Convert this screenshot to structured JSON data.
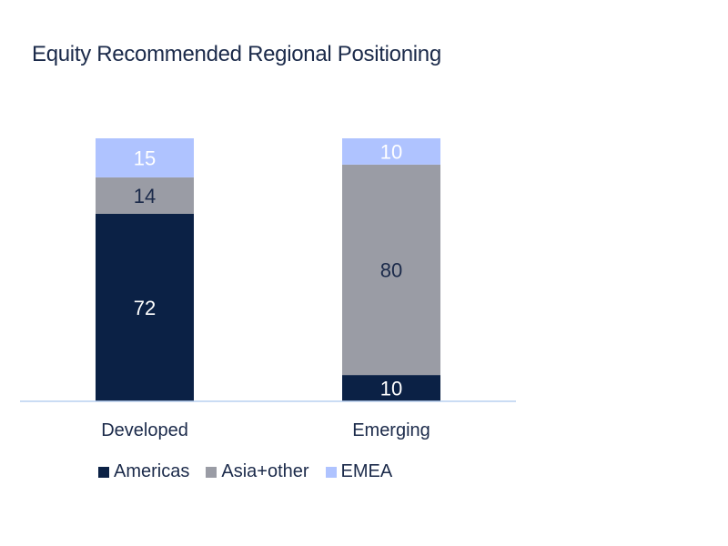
{
  "chart_data": {
    "type": "bar",
    "stacked": true,
    "title": "Equity Recommended Regional Positioning",
    "categories": [
      "Developed",
      "Emerging"
    ],
    "series": [
      {
        "name": "Americas",
        "values": [
          72,
          10
        ],
        "color": "#0b2145",
        "label_color": "#ffffff"
      },
      {
        "name": "Asia+other",
        "values": [
          14,
          80
        ],
        "color": "#9a9ca5",
        "label_color": "#1b2a4a"
      },
      {
        "name": "EMEA",
        "values": [
          15,
          10
        ],
        "color": "#afc3ff",
        "label_color": "#ffffff"
      }
    ],
    "ylim": [
      0,
      100
    ],
    "grid": false,
    "legend_position": "bottom"
  }
}
